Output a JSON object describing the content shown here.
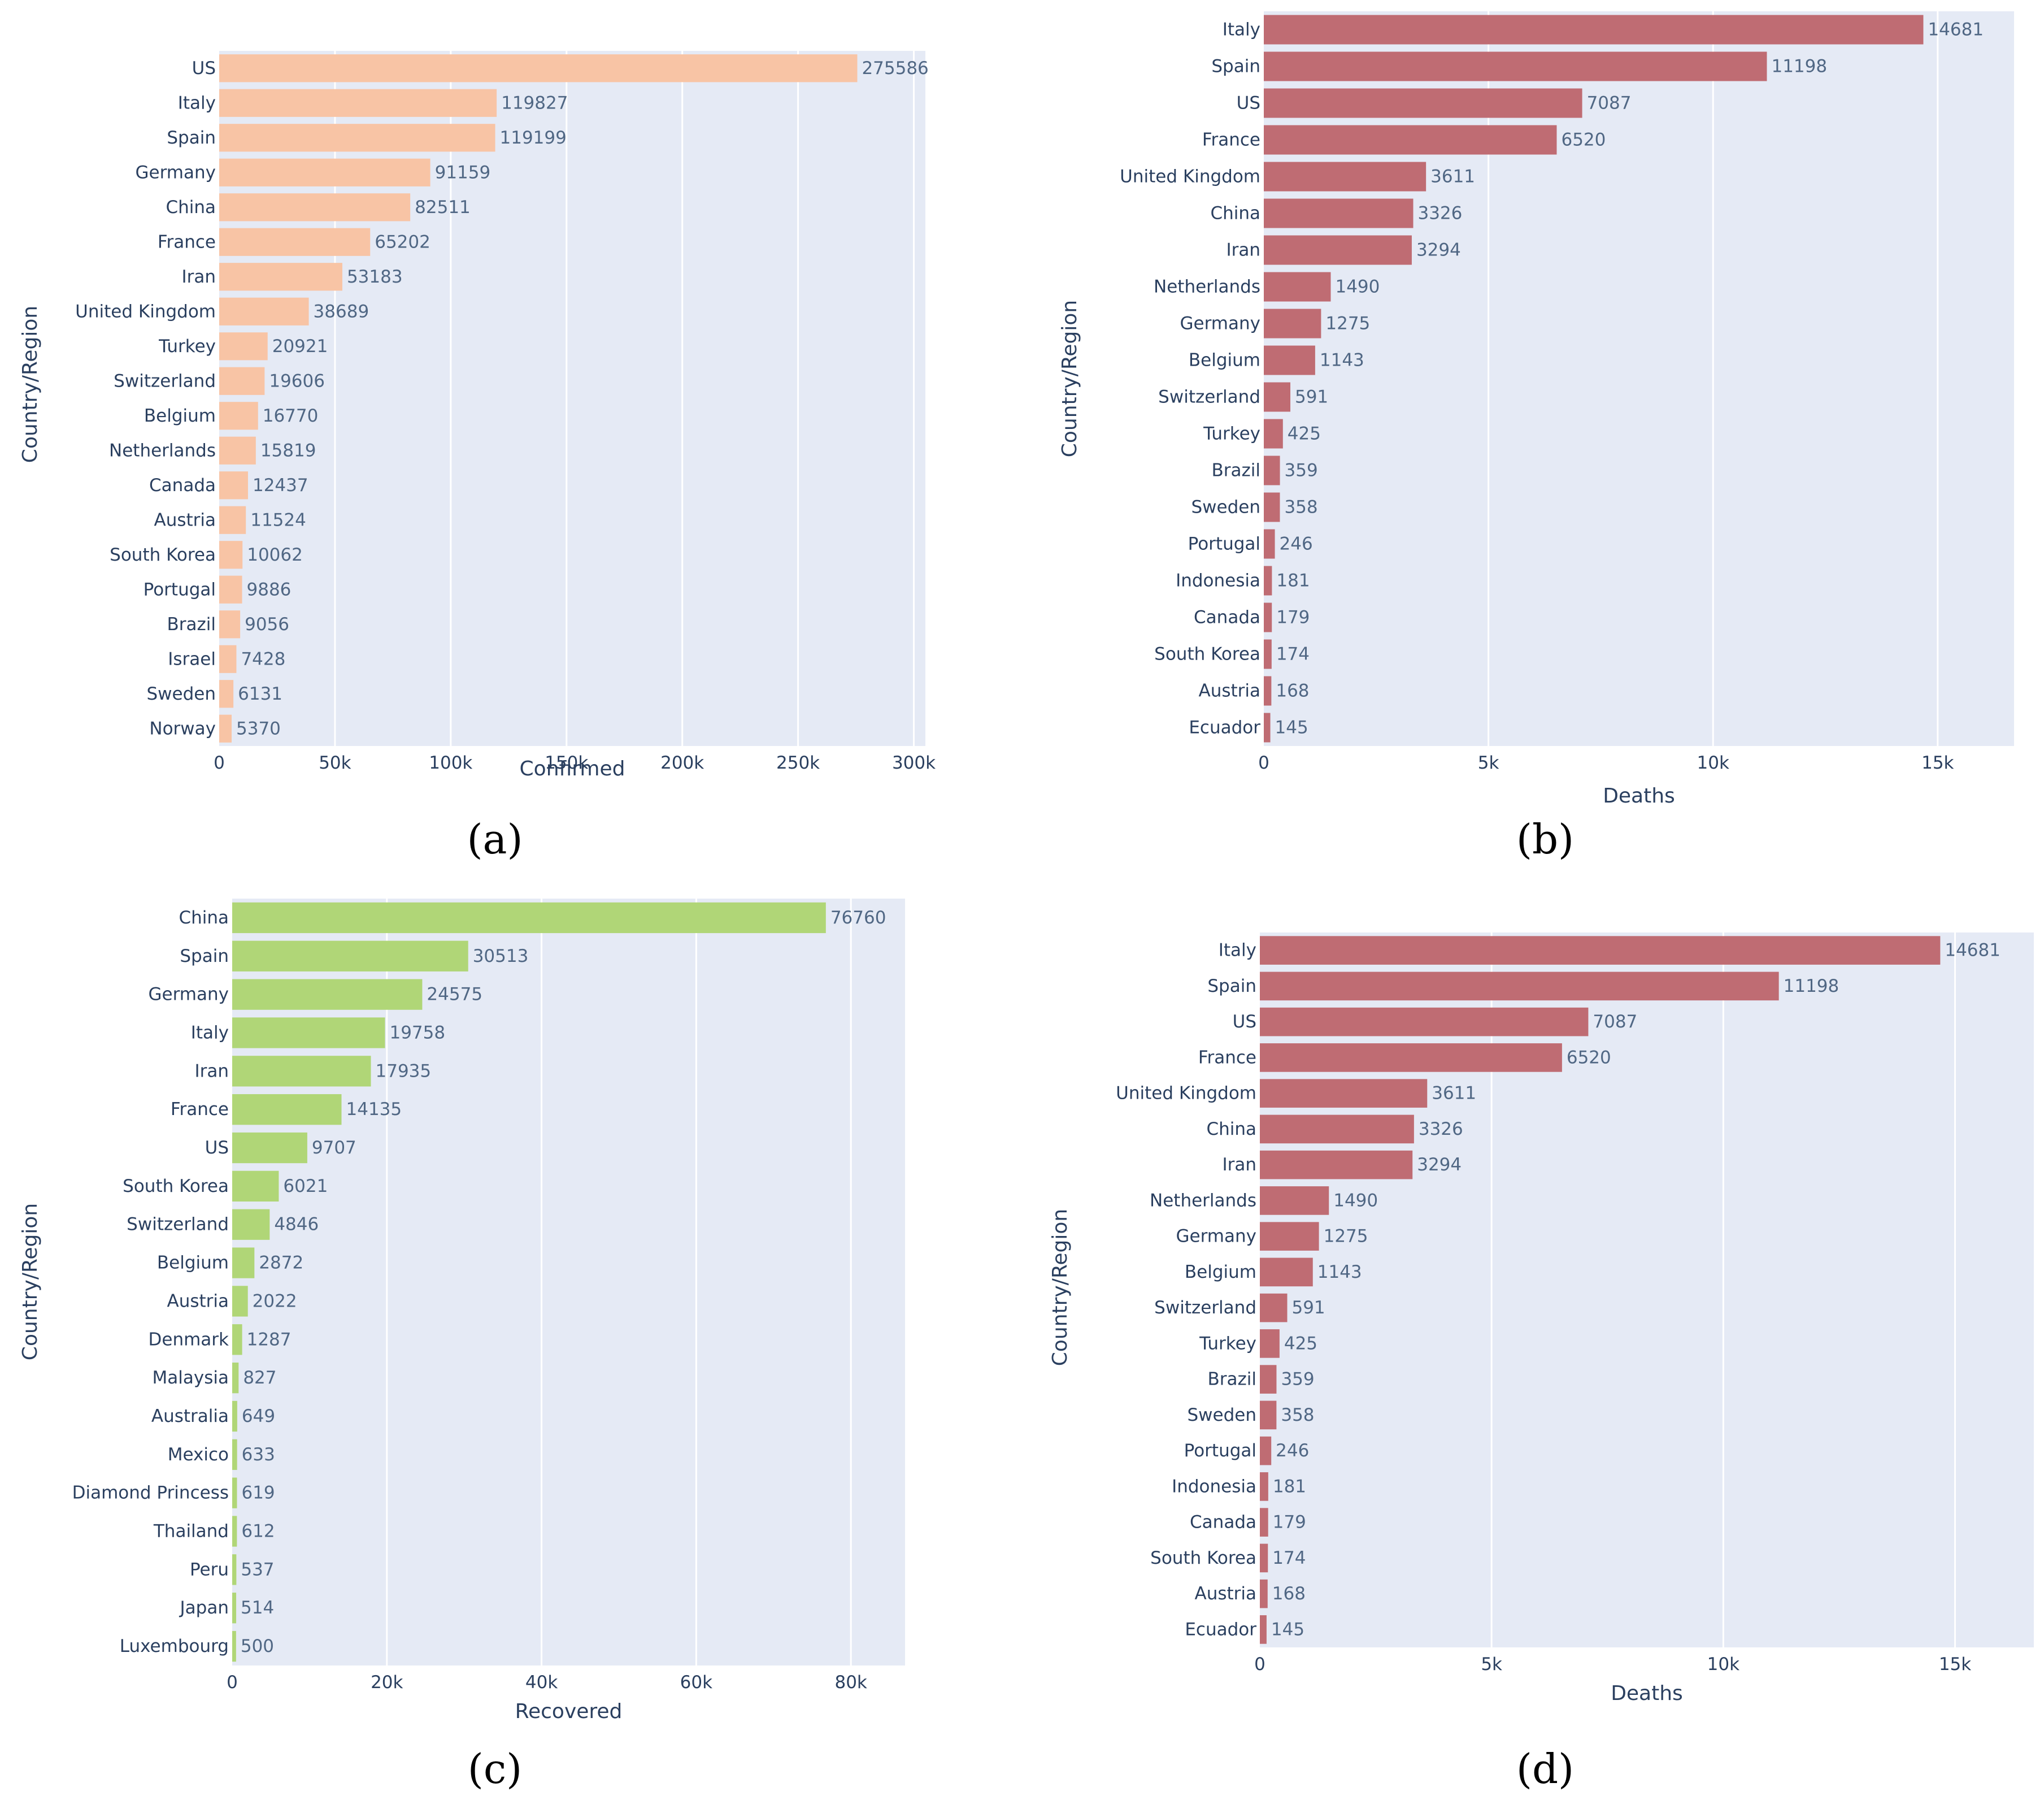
{
  "chart_data": [
    {
      "type": "bar",
      "orientation": "horizontal",
      "panel_label": "(a)",
      "xlabel": "Confirmed",
      "ylabel": "Country/Region",
      "xlim": [
        0,
        305000
      ],
      "xticks": [
        0,
        50000,
        100000,
        150000,
        200000,
        250000,
        300000
      ],
      "xtick_labels": [
        "0",
        "50k",
        "100k",
        "150k",
        "200k",
        "250k",
        "300k"
      ],
      "grid": true,
      "bar_color": "#F8C4A5",
      "plot_bg": "#E5EAF5",
      "categories": [
        "US",
        "Italy",
        "Spain",
        "Germany",
        "China",
        "France",
        "Iran",
        "United Kingdom",
        "Turkey",
        "Switzerland",
        "Belgium",
        "Netherlands",
        "Canada",
        "Austria",
        "South Korea",
        "Portugal",
        "Brazil",
        "Israel",
        "Sweden",
        "Norway"
      ],
      "values": [
        275586,
        119827,
        119199,
        91159,
        82511,
        65202,
        53183,
        38689,
        20921,
        19606,
        16770,
        15819,
        12437,
        11524,
        10062,
        9886,
        9056,
        7428,
        6131,
        5370
      ]
    },
    {
      "type": "bar",
      "orientation": "horizontal",
      "panel_label": "(b)",
      "xlabel": "Deaths",
      "ylabel": "Country/Region",
      "xlim": [
        0,
        16700
      ],
      "xticks": [
        0,
        5000,
        10000,
        15000
      ],
      "xtick_labels": [
        "0",
        "5k",
        "10k",
        "15k"
      ],
      "grid": true,
      "bar_color": "#BF6C73",
      "plot_bg": "#E5EAF5",
      "categories": [
        "Italy",
        "Spain",
        "US",
        "France",
        "United Kingdom",
        "China",
        "Iran",
        "Netherlands",
        "Germany",
        "Belgium",
        "Switzerland",
        "Turkey",
        "Brazil",
        "Sweden",
        "Portugal",
        "Indonesia",
        "Canada",
        "South Korea",
        "Austria",
        "Ecuador"
      ],
      "values": [
        14681,
        11198,
        7087,
        6520,
        3611,
        3326,
        3294,
        1490,
        1275,
        1143,
        591,
        425,
        359,
        358,
        246,
        181,
        179,
        174,
        168,
        145
      ]
    },
    {
      "type": "bar",
      "orientation": "horizontal",
      "panel_label": "(c)",
      "xlabel": "Recovered",
      "ylabel": "Country/Region",
      "xlim": [
        0,
        87000
      ],
      "xticks": [
        0,
        20000,
        40000,
        60000,
        80000
      ],
      "xtick_labels": [
        "0",
        "20k",
        "40k",
        "60k",
        "80k"
      ],
      "grid": true,
      "bar_color": "#B0D677",
      "plot_bg": "#E5EAF5",
      "categories": [
        "China",
        "Spain",
        "Germany",
        "Italy",
        "Iran",
        "France",
        "US",
        "South Korea",
        "Switzerland",
        "Belgium",
        "Austria",
        "Denmark",
        "Malaysia",
        "Australia",
        "Mexico",
        "Diamond Princess",
        "Thailand",
        "Peru",
        "Japan",
        "Luxembourg"
      ],
      "values": [
        76760,
        30513,
        24575,
        19758,
        17935,
        14135,
        9707,
        6021,
        4846,
        2872,
        2022,
        1287,
        827,
        649,
        633,
        619,
        612,
        537,
        514,
        500
      ]
    },
    {
      "type": "bar",
      "orientation": "horizontal",
      "panel_label": "(d)",
      "xlabel": "Deaths",
      "ylabel": "Country/Region",
      "xlim": [
        0,
        16700
      ],
      "xticks": [
        0,
        5000,
        10000,
        15000
      ],
      "xtick_labels": [
        "0",
        "5k",
        "10k",
        "15k"
      ],
      "grid": true,
      "bar_color": "#BF6C73",
      "plot_bg": "#E5EAF5",
      "categories": [
        "Italy",
        "Spain",
        "US",
        "France",
        "United Kingdom",
        "China",
        "Iran",
        "Netherlands",
        "Germany",
        "Belgium",
        "Switzerland",
        "Turkey",
        "Brazil",
        "Sweden",
        "Portugal",
        "Indonesia",
        "Canada",
        "South Korea",
        "Austria",
        "Ecuador"
      ],
      "values": [
        14681,
        11198,
        7087,
        6520,
        3611,
        3326,
        3294,
        1490,
        1275,
        1143,
        591,
        425,
        359,
        358,
        246,
        181,
        179,
        174,
        168,
        145
      ]
    }
  ]
}
